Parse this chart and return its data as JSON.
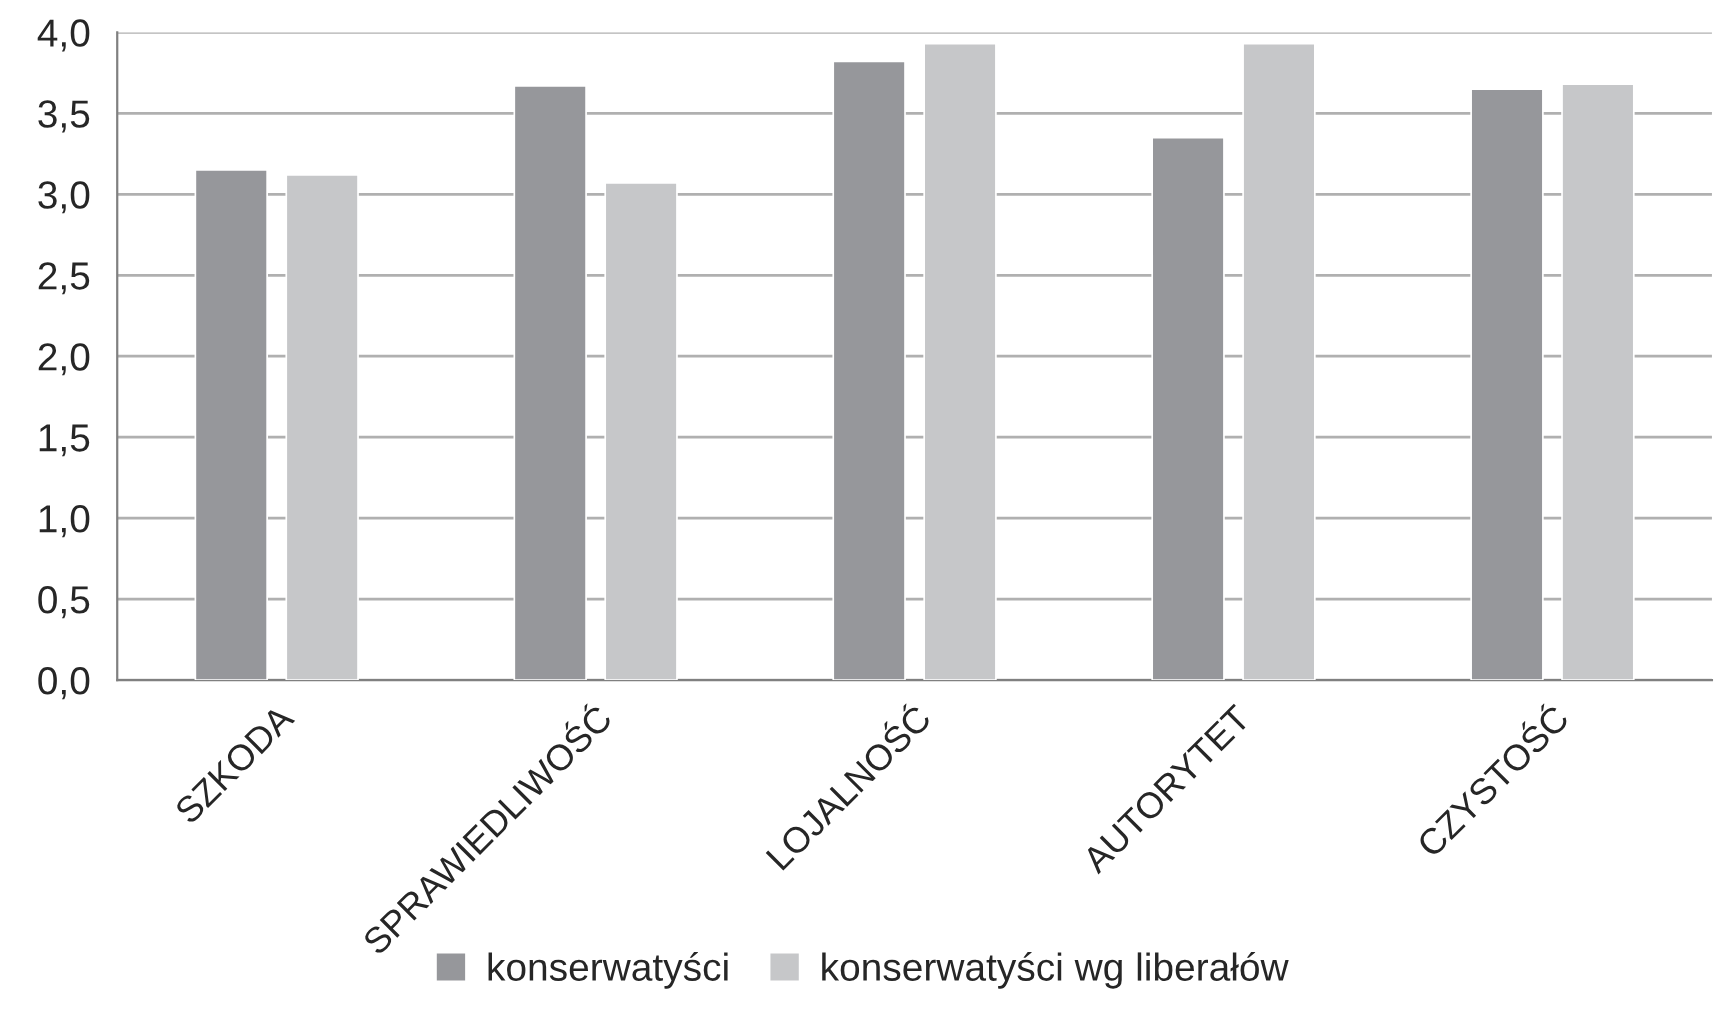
{
  "chart_data": {
    "type": "bar",
    "categories": [
      "SZKODA",
      "SPRAWIEDLIWOŚĆ",
      "LOJALNOŚĆ",
      "AUTORYTET",
      "CZYSTOŚĆ"
    ],
    "series": [
      {
        "name": "konserwatyści",
        "color": "#96979b",
        "values": [
          3.15,
          3.67,
          3.82,
          3.35,
          3.65
        ]
      },
      {
        "name": "konserwatyści wg liberałów",
        "color": "#c6c7c9",
        "values": [
          3.12,
          3.07,
          3.93,
          3.93,
          3.68
        ]
      }
    ],
    "ylim": [
      0,
      4
    ],
    "yticks": [
      {
        "value": 0,
        "label": "0,0"
      },
      {
        "value": 0.5,
        "label": "0,5"
      },
      {
        "value": 1,
        "label": "1,0"
      },
      {
        "value": 1.5,
        "label": "1,5"
      },
      {
        "value": 2,
        "label": "2,0"
      },
      {
        "value": 2.5,
        "label": "2,5"
      },
      {
        "value": 3,
        "label": "3,0"
      },
      {
        "value": 3.5,
        "label": "3,5"
      },
      {
        "value": 4,
        "label": "4,0"
      }
    ],
    "grid": "y",
    "legend": "bottom"
  }
}
